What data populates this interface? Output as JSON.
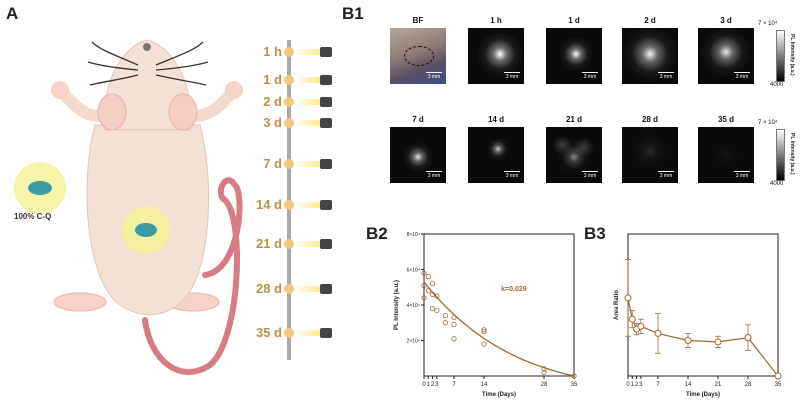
{
  "panels": {
    "a": "A",
    "b1": "B1",
    "b2": "B2",
    "b3": "B3"
  },
  "cq_label": "100% C-Q",
  "timeline": [
    "1 h",
    "1 d",
    "2 d",
    "3 d",
    "7 d",
    "14 d",
    "21 d",
    "28 d",
    "35 d"
  ],
  "tiles": {
    "row1": [
      "BF",
      "1 h",
      "1 d",
      "2 d",
      "3 d"
    ],
    "row2": [
      "7 d",
      "14 d",
      "21 d",
      "28 d",
      "35 d"
    ],
    "scale": "3 mm"
  },
  "colorbar": {
    "max": "7 × 10⁴",
    "min": "4000",
    "title": "PL Intensity (a.u.)"
  },
  "colors": {
    "accent": "#b8904a",
    "plot": "#9b6a35"
  },
  "chart_data": [
    {
      "type": "scatter",
      "title": "",
      "xlabel": "Time (Days)",
      "ylabel": "PL Intensity (a.u.)",
      "xlim": [
        0,
        35
      ],
      "ylim": [
        0,
        80000
      ],
      "xticks": [
        0,
        1,
        2,
        3,
        7,
        14,
        28,
        35
      ],
      "yticks": [
        {
          "v": 20000,
          "label": "2×10⁴"
        },
        {
          "v": 40000,
          "label": "4×10⁴"
        },
        {
          "v": 60000,
          "label": "6×10⁴"
        },
        {
          "v": 80000,
          "label": "8×10⁴"
        }
      ],
      "points": [
        {
          "x": 0,
          "y": 58000
        },
        {
          "x": 0,
          "y": 51000
        },
        {
          "x": 0,
          "y": 44000
        },
        {
          "x": 1,
          "y": 56000
        },
        {
          "x": 1,
          "y": 48000
        },
        {
          "x": 2,
          "y": 52000
        },
        {
          "x": 2,
          "y": 46000
        },
        {
          "x": 2,
          "y": 38000
        },
        {
          "x": 3,
          "y": 45000
        },
        {
          "x": 3,
          "y": 37000
        },
        {
          "x": 5,
          "y": 34000
        },
        {
          "x": 5,
          "y": 30000
        },
        {
          "x": 7,
          "y": 33000
        },
        {
          "x": 7,
          "y": 29000
        },
        {
          "x": 7,
          "y": 21000
        },
        {
          "x": 14,
          "y": 26000
        },
        {
          "x": 14,
          "y": 25000
        },
        {
          "x": 14,
          "y": 18000
        },
        {
          "x": 28,
          "y": 4000
        },
        {
          "x": 28,
          "y": 2000
        },
        {
          "x": 35,
          "y": 0
        }
      ],
      "fit": {
        "label": "k=0.029",
        "a": 53000,
        "k": 0.029,
        "c": 0
      },
      "annotation": "k=0.029"
    },
    {
      "type": "line",
      "title": "",
      "xlabel": "Time (Days)",
      "ylabel": "Area Ratio",
      "xlim": [
        0,
        35
      ],
      "ylim": [
        0,
        1.0
      ],
      "xticks": [
        0,
        1,
        2,
        3,
        7,
        14,
        21,
        28,
        35
      ],
      "x": [
        0,
        1,
        2,
        3,
        7,
        14,
        21,
        28,
        35
      ],
      "values": [
        0.55,
        0.4,
        0.33,
        0.35,
        0.3,
        0.25,
        0.24,
        0.27,
        0.0
      ],
      "errors": [
        0.27,
        0.06,
        0.04,
        0.05,
        0.14,
        0.05,
        0.04,
        0.09,
        0.0
      ]
    }
  ]
}
